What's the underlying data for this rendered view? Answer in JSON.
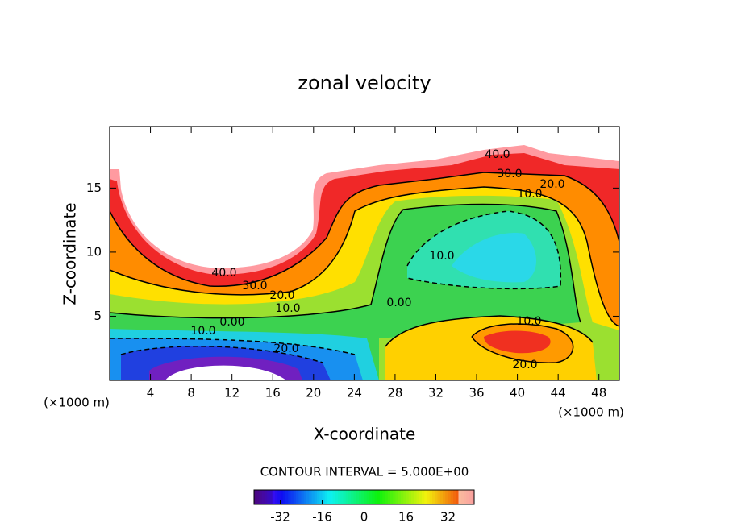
{
  "chart_data": {
    "type": "contour",
    "title": "zonal velocity",
    "x_label": "X-coordinate",
    "y_label": "Z-coordinate",
    "x_unit": "(×1000 m)",
    "xlim": [
      0,
      50
    ],
    "xticks": [
      4,
      8,
      12,
      16,
      20,
      24,
      28,
      32,
      36,
      40,
      44,
      48
    ],
    "ylim": [
      0,
      19.8
    ],
    "yticks": [
      5,
      10,
      15
    ],
    "contour_labels": [
      "40.0",
      "30.0",
      "20.0",
      "10.0",
      "40.0",
      "30.0",
      "20.0",
      "10.0",
      "0.00",
      "10.0",
      "20.0",
      "10.0",
      "0.00",
      "10.0",
      "20.0"
    ],
    "note": "CONTOUR INTERVAL = 5.000E+00",
    "colorbar": {
      "lim": [
        -42,
        42
      ],
      "ticks": [
        -32,
        -16,
        0,
        16,
        32
      ]
    }
  }
}
